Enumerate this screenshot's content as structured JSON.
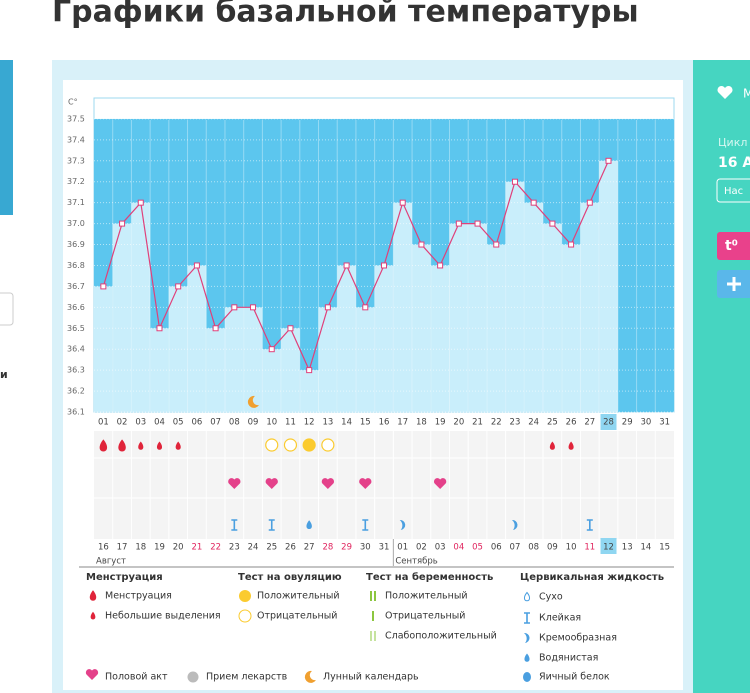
{
  "title": "Графики базальной температуры",
  "left_panel": {
    "label": "и"
  },
  "right_panel": {
    "heart_label": "М",
    "cycle_label": "Цикл",
    "cycle_date": "16 А",
    "button": "Нас",
    "temp_button": "t⁰"
  },
  "chart_data": {
    "type": "line",
    "y_label": "C°",
    "categories": [
      "01",
      "02",
      "03",
      "04",
      "05",
      "06",
      "07",
      "08",
      "09",
      "10",
      "11",
      "12",
      "13",
      "14",
      "15",
      "16",
      "17",
      "18",
      "19",
      "20",
      "21",
      "22",
      "23",
      "24",
      "25",
      "26",
      "27",
      "28",
      "29",
      "30",
      "31"
    ],
    "values": [
      36.7,
      37.0,
      37.1,
      36.5,
      36.7,
      36.8,
      36.5,
      36.6,
      36.6,
      36.4,
      36.5,
      36.3,
      36.6,
      36.8,
      36.6,
      36.8,
      37.1,
      36.9,
      36.8,
      37.0,
      37.0,
      36.9,
      37.2,
      37.1,
      37.0,
      36.9,
      37.1,
      37.3,
      null,
      null,
      null
    ],
    "color": "#e0407a",
    "bar_color": "#c9eefb",
    "background_color": "#5cc6ee",
    "current_day": "28",
    "ylim": [
      36.1,
      37.6
    ],
    "yticks": [
      36.1,
      36.2,
      36.3,
      36.4,
      36.5,
      36.6,
      36.7,
      36.8,
      36.9,
      {
        "value": 37,
        "label": "37.0"
      },
      37.1,
      37.2,
      37.3,
      37.4,
      37.5
    ],
    "grid": true,
    "dates": [
      "16",
      "17",
      "18",
      "19",
      "20",
      "21",
      "22",
      "23",
      "24",
      "25",
      "26",
      "27",
      "28",
      "29",
      "30",
      "31",
      "01",
      "02",
      "03",
      "04",
      "05",
      "06",
      "07",
      "08",
      "09",
      "10",
      "11",
      "12",
      "13",
      "14",
      "15"
    ],
    "weekends": [
      "21",
      "22",
      "28",
      "29",
      "04",
      "05",
      "11"
    ],
    "today": "12",
    "months": [
      "Август",
      "Сентябрь"
    ],
    "markers": {
      "menstruation": {
        "01": "heavy",
        "02": "heavy",
        "03": "light",
        "04": "light",
        "05": "light",
        "25": "light",
        "26": "light"
      },
      "ovulation_test": {
        "10": "negative",
        "11": "negative",
        "12": "positive",
        "13": "negative"
      },
      "intercourse": [
        "08",
        "10",
        "13",
        "15",
        "19"
      ],
      "cervical": {
        "08": "sticky",
        "10": "sticky",
        "12": "watery",
        "15": "sticky",
        "17": "creamy",
        "23": "creamy",
        "27": "sticky"
      },
      "lunar": [
        "09"
      ]
    }
  },
  "legend": {
    "groups": [
      {
        "title": "Менструация",
        "items": [
          "Менструация",
          "Небольшие выделения"
        ]
      },
      {
        "title": "Тест на овуляцию",
        "items": [
          "Положительный",
          "Отрицательный"
        ]
      },
      {
        "title": "Тест на беременность",
        "items": [
          "Положительный",
          "Отрицательный",
          "Слабоположительный"
        ]
      },
      {
        "title": "Цервикальная жидкость",
        "items": [
          "Сухо",
          "Клейкая",
          "Кремообразная",
          "Водянистая",
          "Яичный белок"
        ]
      }
    ],
    "extra": [
      "Половой акт",
      "Прием лекарств",
      "Лунный календарь"
    ]
  }
}
